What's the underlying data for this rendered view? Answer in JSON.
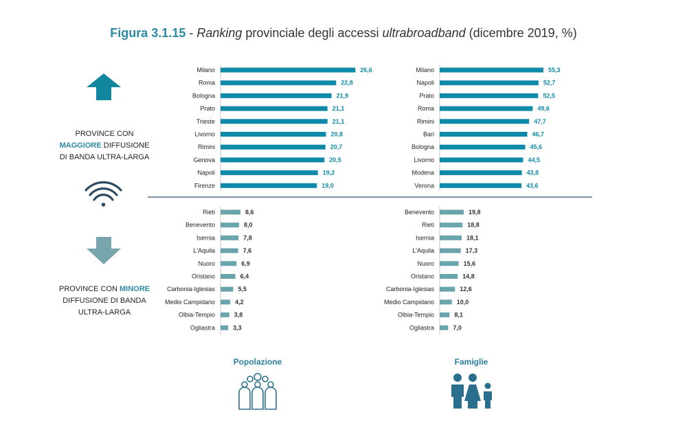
{
  "title": {
    "figure": "Figura 3.1.15",
    "sep": " - ",
    "word1": "Ranking",
    "mid": " provinciale degli accessi ",
    "word2": "ultrabroadband",
    "suffix": " (dicembre 2019, %)"
  },
  "legend_top": {
    "line1": "PROVINCE CON",
    "highlight": "MAGGIORE",
    "line2_rest": " DIFFUSIONE",
    "line3": "DI BANDA ULTRA-LARGA"
  },
  "legend_bottom": {
    "line1_pre": "PROVINCE CON ",
    "highlight": "MINORE",
    "line2": "DIFFUSIONE DI BANDA",
    "line3": "ULTRA-LARGA"
  },
  "panel_labels": {
    "left": "Popolazione",
    "right": "Famiglie"
  },
  "colors": {
    "top_bar": "#0f8aa8",
    "bottom_bar": "#6aa4ad",
    "divider": "#2f4f6a",
    "accent": "#2b8aa4"
  },
  "icons": {
    "up": "arrow-up-icon",
    "wifi": "wifi-icon",
    "down": "arrow-down-icon",
    "population": "population-icon",
    "family": "family-icon"
  },
  "chart_data": [
    {
      "type": "bar",
      "panel": "Popolazione - maggiore diffusione",
      "categories": [
        "Milano",
        "Roma",
        "Bologna",
        "Prato",
        "Trieste",
        "Livorno",
        "Rimini",
        "Genova",
        "Napoli",
        "Firenze"
      ],
      "values": [
        26.6,
        22.8,
        21.9,
        21.1,
        21.1,
        20.8,
        20.7,
        20.5,
        19.2,
        19.0
      ],
      "labels": [
        "26,6",
        "22,8",
        "21,9",
        "21,1",
        "21,1",
        "20,8",
        "20,7",
        "20,5",
        "19,2",
        "19,0"
      ]
    },
    {
      "type": "bar",
      "panel": "Famiglie - maggiore diffusione",
      "categories": [
        "Milano",
        "Napoli",
        "Prato",
        "Roma",
        "Rimini",
        "Bari",
        "Bologna",
        "Livorno",
        "Modena",
        "Verona"
      ],
      "values": [
        55.3,
        52.7,
        52.5,
        49.6,
        47.7,
        46.7,
        45.6,
        44.5,
        43.8,
        43.6
      ],
      "labels": [
        "55,3",
        "52,7",
        "52,5",
        "49,6",
        "47,7",
        "46,7",
        "45,6",
        "44,5",
        "43,8",
        "43,6"
      ]
    },
    {
      "type": "bar",
      "panel": "Popolazione - minore diffusione",
      "categories": [
        "Rieti",
        "Benevento",
        "Isernia",
        "L'Aquila",
        "Nuoro",
        "Oristano",
        "Carbonia-Iglesias",
        "Medio Campidano",
        "Olbia-Tempio",
        "Ogliastra"
      ],
      "values": [
        8.6,
        8.0,
        7.8,
        7.6,
        6.9,
        6.4,
        5.5,
        4.2,
        3.8,
        3.3
      ],
      "labels": [
        "8,6",
        "8,0",
        "7,8",
        "7,6",
        "6,9",
        "6,4",
        "5,5",
        "4,2",
        "3,8",
        "3,3"
      ]
    },
    {
      "type": "bar",
      "panel": "Famiglie - minore diffusione",
      "categories": [
        "Benevento",
        "Rieti",
        "Isernia",
        "L'Aquila",
        "Nuoro",
        "Oristano",
        "Carbonia-Iglesias",
        "Medio Campidano",
        "Olbia-Tempio",
        "Ogliastra"
      ],
      "values": [
        19.8,
        18.8,
        18.1,
        17.3,
        15.6,
        14.8,
        12.6,
        10.0,
        8.1,
        7.0
      ],
      "labels": [
        "19,8",
        "18,8",
        "18,1",
        "17,3",
        "15,6",
        "14,8",
        "12,6",
        "10,0",
        "8,1",
        "7,0"
      ]
    }
  ]
}
